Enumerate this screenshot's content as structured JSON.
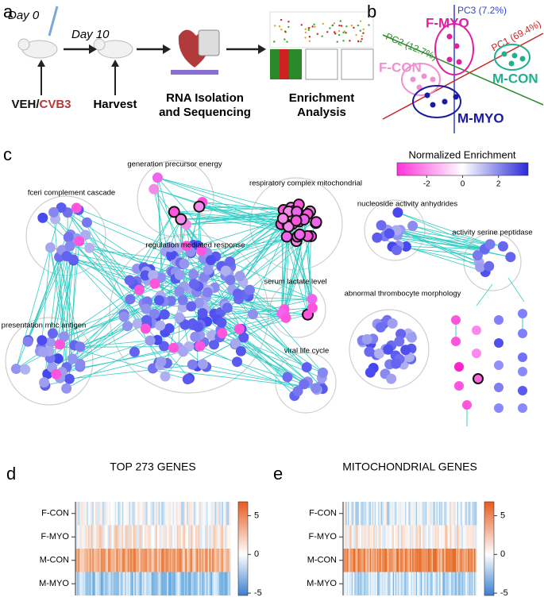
{
  "figure": {
    "panel_labels": [
      "a",
      "b",
      "c",
      "d",
      "e"
    ],
    "workflow": {
      "day0": "Day 0",
      "day10": "Day 10",
      "treatment": [
        "VEH",
        "/",
        "CVB3"
      ],
      "harvest": "Harvest",
      "rna": [
        "RNA Isolation",
        "and Sequencing"
      ],
      "enrichment": [
        "Enrichment",
        "Analysis"
      ]
    },
    "pca": {
      "pc1": "PC1 (69.4%)",
      "pc2": "PC2 (12.7%)",
      "pc3": "PC3 (7.2%)",
      "groups": [
        "F-MYO",
        "F-CON",
        "M-CON",
        "M-MYO"
      ]
    },
    "network": {
      "colorbar": {
        "title": "Normalized Enrichment",
        "lim": [
          -3.65,
          3.65
        ],
        "ticks": [
          -2,
          0,
          2
        ]
      },
      "clusters": [
        "generation precursor energy",
        "respiratory complex mitochondrial",
        "fceri complement cascade",
        "nucleoside activity anhydrides",
        "activity serine peptidase",
        "regulation mediated response",
        "serum lactate level",
        "presentation mhc antigen",
        "abnormal thrombocyte morphology",
        "viral life cycle"
      ]
    },
    "heatmaps": [
      {
        "title": "TOP 273 GENES",
        "rows": [
          "F-CON",
          "F-MYO",
          "M-CON",
          "M-MYO"
        ],
        "colorbar": {
          "lim": [
            -5.3,
            6.8
          ],
          "ticks": [
            5,
            0,
            -5
          ]
        }
      },
      {
        "title": "MITOCHONDRIAL GENES",
        "rows": [
          "F-CON",
          "F-MYO",
          "M-CON",
          "M-MYO"
        ],
        "colorbar": {
          "lim": [
            -5.3,
            6.8
          ],
          "ticks": [
            5,
            0,
            -5
          ]
        }
      }
    ]
  }
}
